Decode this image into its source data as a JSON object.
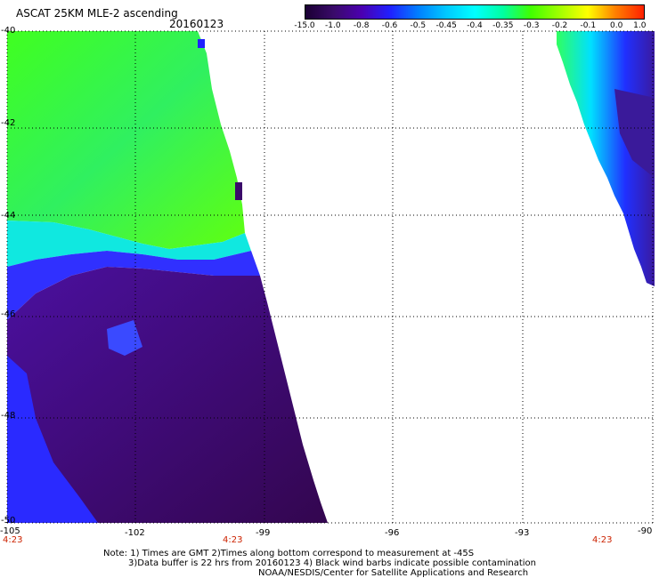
{
  "header": {
    "title": "ASCAT 25KM MLE-2 ascending",
    "date": "20160123"
  },
  "colorbar": {
    "labels": [
      "-15.0",
      "-1.0",
      "-0.8",
      "-0.6",
      "-0.5",
      "-0.45",
      "-0.4",
      "-0.35",
      "-0.3",
      "-0.2",
      "-0.1",
      "0.0",
      "1.0"
    ],
    "colors": [
      "#1a0033",
      "#3a0a6a",
      "#4b00b0",
      "#2020ff",
      "#0080ff",
      "#00c8ff",
      "#00ffff",
      "#00ffa0",
      "#40ff00",
      "#a0ff00",
      "#ffff00",
      "#ff8000",
      "#ff2000"
    ]
  },
  "map": {
    "lat_labels": [
      "-40",
      "-42",
      "-44",
      "-46",
      "-48",
      "-50"
    ],
    "lon_labels": [
      "-105",
      "-102",
      "-99",
      "-96",
      "-93",
      "-90"
    ],
    "time_labels": [
      "4:23",
      "4:23",
      "4:23"
    ]
  },
  "notes": [
    "Note: 1) Times are GMT 2)Times along bottom correspond to measurement at -45S",
    "3)Data buffer is 22 hrs from 20160123 4) Black wind barbs indicate possible contamination",
    "NOAA/NESDIS/Center for Satellite Applications and Research"
  ]
}
